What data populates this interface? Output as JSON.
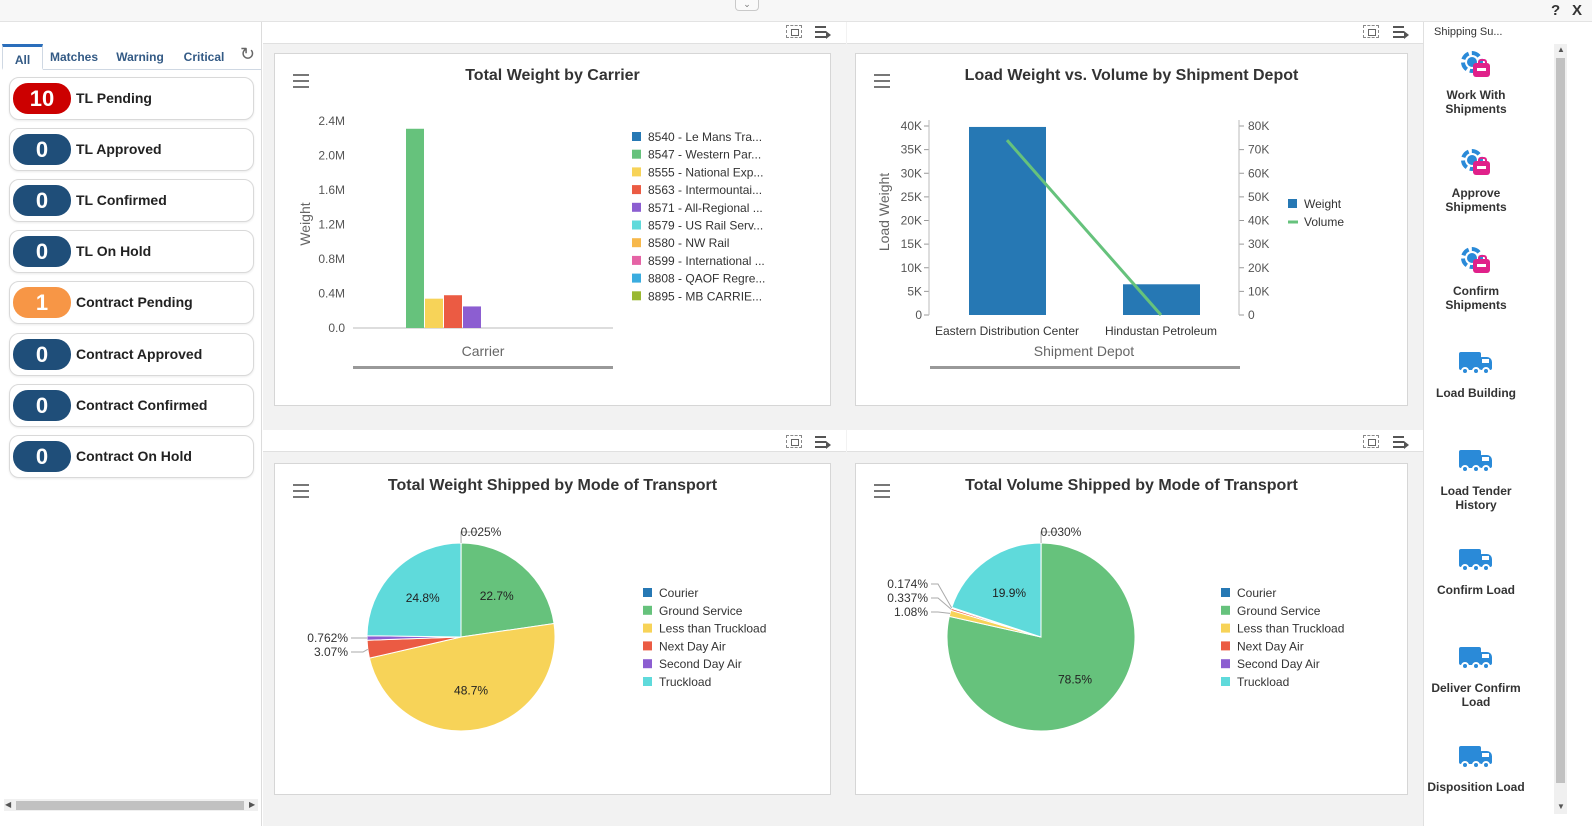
{
  "window": {
    "help_glyph": "?",
    "close_glyph": "X",
    "collapse_glyph": "⌄"
  },
  "watchlist": {
    "tabs": [
      "All",
      "Matches",
      "Warning",
      "Critical"
    ],
    "refresh_glyph": "↻",
    "items": [
      {
        "count": "10",
        "label": "TL Pending",
        "color": "#cc0000"
      },
      {
        "count": "0",
        "label": "TL Approved",
        "color": "#1f4e79"
      },
      {
        "count": "0",
        "label": "TL Confirmed",
        "color": "#1f4e79"
      },
      {
        "count": "0",
        "label": "TL On Hold",
        "color": "#1f4e79"
      },
      {
        "count": "1",
        "label": "Contract Pending",
        "color": "#f79646"
      },
      {
        "count": "0",
        "label": "Contract Approved",
        "color": "#1f4e79"
      },
      {
        "count": "0",
        "label": "Contract Confirmed",
        "color": "#1f4e79"
      },
      {
        "count": "0",
        "label": "Contract On Hold",
        "color": "#1f4e79"
      }
    ]
  },
  "springboard": {
    "title": "Shipping Su...",
    "items": [
      {
        "label": "Work With Shipments",
        "icon": "gear-bag-icon"
      },
      {
        "label": "Approve Shipments",
        "icon": "gear-bag-icon"
      },
      {
        "label": "Confirm Shipments",
        "icon": "gear-bag-icon"
      },
      {
        "label": "Load Building",
        "icon": "truck-icon"
      },
      {
        "label": "Load Tender History",
        "icon": "truck-icon"
      },
      {
        "label": "Confirm Load",
        "icon": "truck-icon"
      },
      {
        "label": "Deliver Confirm Load",
        "icon": "truck-icon"
      },
      {
        "label": "Disposition Load",
        "icon": "truck-icon"
      }
    ]
  },
  "chart_data": [
    {
      "type": "bar",
      "title": "Total Weight by Carrier",
      "xlabel": "Carrier",
      "ylabel": "Weight",
      "ylim": [
        0,
        2400000
      ],
      "yticks": [
        "0.0",
        "0.4M",
        "0.8M",
        "1.2M",
        "1.6M",
        "2.0M",
        "2.4M"
      ],
      "series": [
        {
          "name": "8540 - Le Mans Tra...",
          "value": 0,
          "color": "#2678b4"
        },
        {
          "name": "8547 - Western Par...",
          "value": 2310000,
          "color": "#66c27c"
        },
        {
          "name": "8555 - National Exp...",
          "value": 340000,
          "color": "#f7d358"
        },
        {
          "name": "8563 - Intermountai...",
          "value": 380000,
          "color": "#eb5b43"
        },
        {
          "name": "8571 - All-Regional ...",
          "value": 250000,
          "color": "#8c5ed1"
        },
        {
          "name": "8579 - US Rail Serv...",
          "value": 0,
          "color": "#5fdadb"
        },
        {
          "name": "8580 - NW Rail",
          "value": 0,
          "color": "#f7b84b"
        },
        {
          "name": "8599 - International ...",
          "value": 0,
          "color": "#e563a5"
        },
        {
          "name": "8808 - QAOF Regre...",
          "value": 0,
          "color": "#3aacdf"
        },
        {
          "name": "8895 - MB CARRIE...",
          "value": 0,
          "color": "#9ab832"
        }
      ]
    },
    {
      "type": "bar",
      "title": "Load Weight vs. Volume by Shipment Depot",
      "xlabel": "Shipment Depot",
      "ylabel": "Load Weight",
      "categories": [
        "Eastern Distribution Center",
        "Hindustan Petroleum"
      ],
      "ylim": [
        0,
        40000
      ],
      "y2lim": [
        0,
        80000
      ],
      "yticks": [
        "0",
        "5K",
        "10K",
        "15K",
        "20K",
        "25K",
        "30K",
        "35K",
        "40K"
      ],
      "y2ticks": [
        "0",
        "10K",
        "20K",
        "30K",
        "40K",
        "50K",
        "60K",
        "70K",
        "80K"
      ],
      "series": [
        {
          "name": "Weight",
          "kind": "bar",
          "values": [
            39800,
            6500
          ],
          "color": "#2678b4"
        },
        {
          "name": "Volume",
          "kind": "line",
          "values": [
            74000,
            0
          ],
          "color": "#66c27c"
        }
      ]
    },
    {
      "type": "pie",
      "title": "Total Weight Shipped by Mode of Transport",
      "slices": [
        {
          "name": "Courier",
          "value": 0.025,
          "label": "0.025%",
          "color": "#2678b4"
        },
        {
          "name": "Ground Service",
          "value": 22.7,
          "label": "22.7%",
          "color": "#66c27c"
        },
        {
          "name": "Less than Truckload",
          "value": 48.7,
          "label": "48.7%",
          "color": "#f7d358"
        },
        {
          "name": "Next Day Air",
          "value": 3.07,
          "label": "3.07%",
          "color": "#eb5b43"
        },
        {
          "name": "Second Day Air",
          "value": 0.762,
          "label": "0.762%",
          "color": "#8c5ed1"
        },
        {
          "name": "Truckload",
          "value": 24.8,
          "label": "24.8%",
          "color": "#5fdadb"
        }
      ]
    },
    {
      "type": "pie",
      "title": "Total Volume Shipped by Mode of Transport",
      "slices": [
        {
          "name": "Courier",
          "value": 0.03,
          "label": "0.030%",
          "color": "#2678b4"
        },
        {
          "name": "Ground Service",
          "value": 78.5,
          "label": "78.5%",
          "color": "#66c27c"
        },
        {
          "name": "Less than Truckload",
          "value": 1.08,
          "label": "1.08%",
          "color": "#f7d358"
        },
        {
          "name": "Next Day Air",
          "value": 0.337,
          "label": "0.337%",
          "color": "#eb5b43"
        },
        {
          "name": "Second Day Air",
          "value": 0.174,
          "label": "0.174%",
          "color": "#8c5ed1"
        },
        {
          "name": "Truckload",
          "value": 19.9,
          "label": "19.9%",
          "color": "#5fdadb"
        }
      ]
    }
  ]
}
